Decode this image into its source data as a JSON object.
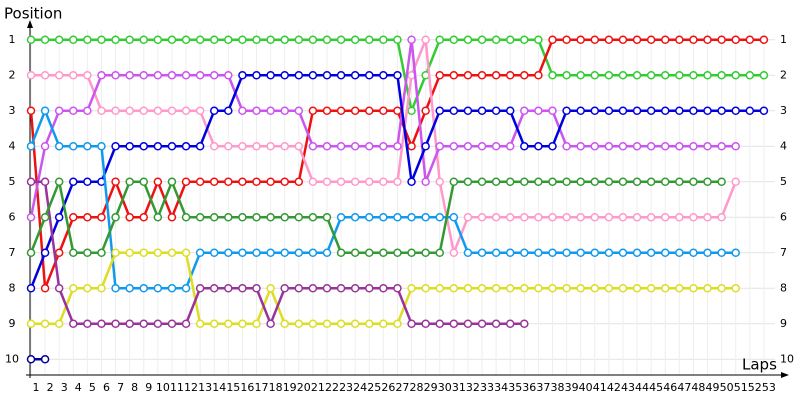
{
  "chart_data": {
    "type": "line",
    "y_label": "Position",
    "x_label": "Laps",
    "x": [
      1,
      2,
      3,
      4,
      5,
      6,
      7,
      8,
      9,
      10,
      11,
      12,
      13,
      14,
      15,
      16,
      17,
      18,
      19,
      20,
      21,
      22,
      23,
      24,
      25,
      26,
      27,
      28,
      29,
      30,
      31,
      32,
      33,
      34,
      35,
      36,
      37,
      38,
      39,
      40,
      41,
      42,
      43,
      44,
      45,
      46,
      47,
      48,
      49,
      50,
      51,
      52,
      53
    ],
    "xlim": [
      1,
      54
    ],
    "ylim": [
      10.5,
      0.5
    ],
    "yticks": [
      1,
      2,
      3,
      4,
      5,
      6,
      7,
      8,
      9,
      10
    ],
    "grid": true,
    "series": [
      {
        "color": "#33cc33",
        "values": [
          1,
          1,
          1,
          1,
          1,
          1,
          1,
          1,
          1,
          1,
          1,
          1,
          1,
          1,
          1,
          1,
          1,
          1,
          1,
          1,
          1,
          1,
          1,
          1,
          1,
          1,
          1,
          3,
          2,
          1,
          1,
          1,
          1,
          1,
          1,
          1,
          1,
          2,
          2,
          2,
          2,
          2,
          2,
          2,
          2,
          2,
          2,
          2,
          2,
          2,
          2,
          2,
          2
        ]
      },
      {
        "color": "#ee1111",
        "values": [
          3,
          8,
          7,
          6,
          6,
          6,
          5,
          6,
          6,
          5,
          6,
          5,
          5,
          5,
          5,
          5,
          5,
          5,
          5,
          5,
          3,
          3,
          3,
          3,
          3,
          3,
          3,
          4,
          3,
          2,
          2,
          2,
          2,
          2,
          2,
          2,
          2,
          1,
          1,
          1,
          1,
          1,
          1,
          1,
          1,
          1,
          1,
          1,
          1,
          1,
          1,
          1,
          1
        ]
      },
      {
        "color": "#ff99cc",
        "values": [
          2,
          2,
          2,
          2,
          2,
          3,
          3,
          3,
          3,
          3,
          3,
          3,
          3,
          4,
          4,
          4,
          4,
          4,
          4,
          4,
          5,
          5,
          5,
          5,
          5,
          5,
          5,
          2,
          1,
          5,
          7,
          6,
          6,
          6,
          6,
          6,
          6,
          6,
          6,
          6,
          6,
          6,
          6,
          6,
          6,
          6,
          6,
          6,
          6,
          6,
          5,
          null,
          null
        ]
      },
      {
        "color": "#cc55ee",
        "values": [
          6,
          4,
          3,
          3,
          3,
          2,
          2,
          2,
          2,
          2,
          2,
          2,
          2,
          2,
          2,
          3,
          3,
          3,
          3,
          3,
          4,
          4,
          4,
          4,
          4,
          4,
          4,
          1,
          5,
          4,
          4,
          4,
          4,
          4,
          4,
          3,
          3,
          3,
          4,
          4,
          4,
          4,
          4,
          4,
          4,
          4,
          4,
          4,
          4,
          4,
          4,
          null,
          null
        ]
      },
      {
        "color": "#0000dd",
        "values": [
          8,
          7,
          6,
          5,
          5,
          5,
          4,
          4,
          4,
          4,
          4,
          4,
          4,
          3,
          3,
          2,
          2,
          2,
          2,
          2,
          2,
          2,
          2,
          2,
          2,
          2,
          2,
          5,
          4,
          3,
          3,
          3,
          3,
          3,
          3,
          4,
          4,
          4,
          3,
          3,
          3,
          3,
          3,
          3,
          3,
          3,
          3,
          3,
          3,
          3,
          3,
          3,
          3
        ]
      },
      {
        "color": "#1199ee",
        "values": [
          4,
          3,
          4,
          4,
          4,
          4,
          8,
          8,
          8,
          8,
          8,
          8,
          7,
          7,
          7,
          7,
          7,
          7,
          7,
          7,
          7,
          7,
          6,
          6,
          6,
          6,
          6,
          6,
          6,
          6,
          6,
          7,
          7,
          7,
          7,
          7,
          7,
          7,
          7,
          7,
          7,
          7,
          7,
          7,
          7,
          7,
          7,
          7,
          7,
          7,
          7,
          null,
          null
        ]
      },
      {
        "color": "#dddd22",
        "values": [
          9,
          9,
          9,
          8,
          8,
          8,
          7,
          7,
          7,
          7,
          7,
          7,
          9,
          9,
          9,
          9,
          9,
          8,
          9,
          9,
          9,
          9,
          9,
          9,
          9,
          9,
          9,
          8,
          8,
          8,
          8,
          8,
          8,
          8,
          8,
          8,
          8,
          8,
          8,
          8,
          8,
          8,
          8,
          8,
          8,
          8,
          8,
          8,
          8,
          8,
          8,
          null,
          null
        ]
      },
      {
        "color": "#993399",
        "values": [
          5,
          5,
          8,
          9,
          9,
          9,
          9,
          9,
          9,
          9,
          9,
          9,
          8,
          8,
          8,
          8,
          8,
          9,
          8,
          8,
          8,
          8,
          8,
          8,
          8,
          8,
          8,
          9,
          9,
          9,
          9,
          9,
          9,
          9,
          9,
          9,
          null,
          null,
          null,
          null,
          null,
          null,
          null,
          null,
          null,
          null,
          null,
          null,
          null,
          null,
          null,
          null,
          null
        ]
      },
      {
        "color": "#339933",
        "values": [
          7,
          6,
          5,
          7,
          7,
          7,
          6,
          5,
          5,
          6,
          5,
          6,
          6,
          6,
          6,
          6,
          6,
          6,
          6,
          6,
          6,
          6,
          7,
          7,
          7,
          7,
          7,
          7,
          7,
          7,
          5,
          5,
          5,
          5,
          5,
          5,
          5,
          5,
          5,
          5,
          5,
          5,
          5,
          5,
          5,
          5,
          5,
          5,
          5,
          5,
          null,
          null,
          null
        ]
      },
      {
        "color": "#000099",
        "values": [
          10,
          10,
          null,
          null,
          null,
          null,
          null,
          null,
          null,
          null,
          null,
          null,
          null,
          null,
          null,
          null,
          null,
          null,
          null,
          null,
          null,
          null,
          null,
          null,
          null,
          null,
          null,
          null,
          null,
          null,
          null,
          null,
          null,
          null,
          null,
          null,
          null,
          null,
          null,
          null,
          null,
          null,
          null,
          null,
          null,
          null,
          null,
          null,
          null,
          null,
          null,
          null,
          null
        ]
      }
    ]
  }
}
